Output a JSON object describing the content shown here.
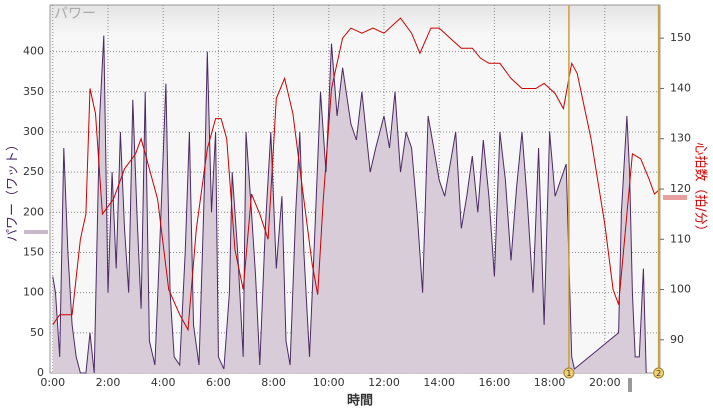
{
  "chart_data": {
    "type": "line",
    "title": "パワー",
    "xlabel": "時間",
    "ylabel": "パワー（ワット）",
    "y2label": "心拍数（拍/分）",
    "xlim": [
      -0.1,
      22.0
    ],
    "xticks": [
      {
        "value": 0,
        "label": "0:00"
      },
      {
        "value": 2,
        "label": "2:00"
      },
      {
        "value": 4,
        "label": "4:00"
      },
      {
        "value": 6,
        "label": "6:00"
      },
      {
        "value": 8,
        "label": "8:00"
      },
      {
        "value": 10,
        "label": "10:00"
      },
      {
        "value": 12,
        "label": "12:00"
      },
      {
        "value": 14,
        "label": "14:00"
      },
      {
        "value": 16,
        "label": "16:00"
      },
      {
        "value": 18,
        "label": "18:00"
      },
      {
        "value": 20,
        "label": "20:00"
      }
    ],
    "ylim": [
      0,
      458
    ],
    "yticks": [
      0,
      50,
      100,
      150,
      200,
      250,
      300,
      350,
      400
    ],
    "y2lim": [
      83.4,
      156.6
    ],
    "y2ticks": [
      90,
      100,
      110,
      120,
      130,
      140,
      150
    ],
    "grid": true,
    "series": [
      {
        "color": "#4b2a66",
        "fill": "#d8ccd9",
        "x": [
          0,
          0.1,
          0.25,
          0.4,
          0.55,
          0.7,
          0.85,
          1.0,
          1.2,
          1.35,
          1.5,
          1.7,
          1.85,
          2.0,
          2.15,
          2.3,
          2.45,
          2.6,
          2.75,
          2.9,
          3.05,
          3.2,
          3.35,
          3.5,
          3.7,
          3.9,
          4.1,
          4.25,
          4.4,
          4.6,
          4.8,
          4.95,
          5.1,
          5.3,
          5.5,
          5.6,
          5.75,
          5.9,
          6.0,
          6.2,
          6.4,
          6.5,
          6.7,
          6.9,
          7.0,
          7.2,
          7.35,
          7.5,
          7.7,
          7.9,
          8.1,
          8.3,
          8.45,
          8.6,
          8.8,
          8.95,
          9.1,
          9.3,
          9.5,
          9.7,
          9.9,
          10.1,
          10.3,
          10.5,
          10.8,
          11.0,
          11.2,
          11.5,
          11.7,
          12.0,
          12.2,
          12.4,
          12.6,
          12.8,
          13.0,
          13.2,
          13.4,
          13.6,
          13.8,
          14.0,
          14.2,
          14.4,
          14.6,
          14.8,
          15.0,
          15.2,
          15.4,
          15.6,
          15.8,
          16.0,
          16.2,
          16.4,
          16.6,
          16.8,
          17.0,
          17.2,
          17.4,
          17.6,
          17.8,
          18.0,
          18.2,
          18.4,
          18.6,
          18.8,
          18.9,
          20.5,
          20.6,
          20.8,
          20.9,
          21.0,
          21.1,
          21.25,
          21.4,
          21.5
        ],
        "values": [
          120,
          100,
          20,
          280,
          150,
          60,
          20,
          0,
          0,
          50,
          0,
          320,
          420,
          100,
          250,
          130,
          300,
          180,
          100,
          340,
          200,
          80,
          350,
          40,
          10,
          180,
          360,
          100,
          20,
          10,
          150,
          300,
          60,
          10,
          240,
          400,
          200,
          300,
          20,
          5,
          100,
          250,
          150,
          20,
          300,
          200,
          120,
          10,
          180,
          300,
          130,
          220,
          40,
          10,
          200,
          300,
          150,
          20,
          180,
          350,
          250,
          410,
          320,
          380,
          310,
          290,
          350,
          250,
          280,
          320,
          280,
          350,
          250,
          300,
          280,
          200,
          100,
          320,
          280,
          240,
          220,
          260,
          300,
          180,
          220,
          270,
          200,
          290,
          220,
          120,
          300,
          240,
          140,
          230,
          300,
          210,
          100,
          280,
          60,
          300,
          220,
          240,
          260,
          20,
          5,
          50,
          200,
          320,
          250,
          100,
          20,
          20,
          130,
          0
        ]
      },
      {
        "color": "#cc0000",
        "axis": "y2",
        "x": [
          0,
          0.25,
          0.7,
          1.0,
          1.2,
          1.35,
          1.55,
          1.8,
          2.2,
          2.6,
          3.0,
          3.2,
          3.4,
          3.8,
          4.2,
          4.6,
          4.9,
          5.2,
          5.6,
          5.9,
          6.1,
          6.3,
          6.6,
          6.9,
          7.2,
          7.5,
          7.8,
          8.1,
          8.4,
          8.7,
          9.0,
          9.4,
          9.6,
          9.8,
          10.1,
          10.5,
          10.8,
          11.2,
          11.6,
          12.0,
          12.6,
          13.0,
          13.3,
          13.7,
          14.0,
          14.4,
          14.8,
          15.2,
          15.5,
          15.8,
          16.2,
          16.6,
          17.0,
          17.5,
          17.8,
          18.2,
          18.5,
          18.8,
          19.0,
          19.5,
          20.0,
          20.3,
          20.5,
          20.8,
          21.0,
          21.3,
          21.6,
          21.8,
          22.0
        ],
        "values": [
          93,
          95,
          95,
          110,
          115,
          140,
          135,
          115,
          118,
          124,
          127,
          130,
          126,
          118,
          100,
          95,
          92,
          112,
          128,
          134,
          134,
          130,
          108,
          100,
          119,
          115,
          110,
          138,
          142,
          135,
          122,
          105,
          99,
          118,
          140,
          150,
          152,
          151,
          152,
          151,
          154,
          151,
          147,
          152,
          152,
          150,
          148,
          148,
          146,
          145,
          145,
          142,
          140,
          140,
          141,
          139,
          136,
          145,
          143,
          130,
          113,
          100,
          97,
          115,
          127,
          126,
          122,
          119,
          120
        ]
      }
    ],
    "cursors": [
      {
        "label": "1",
        "x": 18.7
      },
      {
        "label": "2",
        "x": 21.95
      }
    ]
  }
}
